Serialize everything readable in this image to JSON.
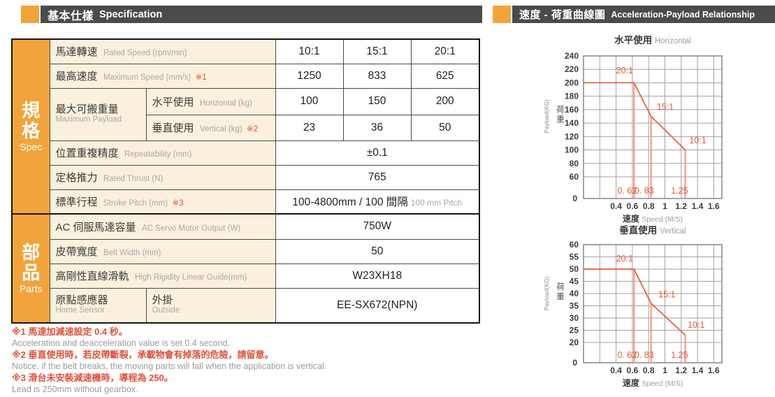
{
  "left": {
    "header": {
      "title_zh": "基本仕樣",
      "title_en": "Specification"
    },
    "side_labels": {
      "spec_zh": "規格",
      "spec_en": "Spec",
      "parts_zh": "部品",
      "parts_en": "Parts"
    },
    "table": {
      "rated_speed": {
        "zh": "馬達轉速",
        "en": "Rated Speed (rpm/min)",
        "values": [
          "10:1",
          "15:1",
          "20:1"
        ]
      },
      "max_speed": {
        "zh": "最高速度",
        "en": "Maximum Speed (mm/s)",
        "mark": "※1",
        "values": [
          "1250",
          "833",
          "625"
        ]
      },
      "max_payload": {
        "zh": "最大可搬重量",
        "en": "Maximum Payload",
        "horizontal": {
          "zh": "水平使用",
          "en": "Horizontal (kg)",
          "values": [
            "100",
            "150",
            "200"
          ]
        },
        "vertical": {
          "zh": "垂直使用",
          "en": "Vertical (kg)",
          "mark": "※2",
          "values": [
            "23",
            "36",
            "50"
          ]
        }
      },
      "repeatability": {
        "zh": "位置重複精度",
        "en": "Repeatability (mm)",
        "value": "±0.1"
      },
      "rated_thrust": {
        "zh": "定格推力",
        "en": "Rated Thrust (N)",
        "value": "765"
      },
      "stroke": {
        "zh": "標準行程",
        "en": "Stroke Pitch (mm)",
        "mark": "※3",
        "value": "100-4800mm / 100 間隔",
        "value_suffix": "100 mm Pitch"
      },
      "servo": {
        "zh": "AC 伺服馬達容量",
        "en": "AC Servo Motor Output (W)",
        "value": "750W"
      },
      "belt": {
        "zh": "皮帶寬度",
        "en": "Belt Width (mm)",
        "value": "50"
      },
      "guide": {
        "zh": "高剛性直線滑軌",
        "en": "High Rigidity Linear Guide(mm)",
        "value": "W23XH18"
      },
      "home_sensor": {
        "zh": "原點感應器",
        "en": "Home Sensor",
        "sub_zh": "外掛",
        "sub_en": "Outside",
        "value": "EE-SX672(NPN)"
      }
    },
    "footnotes": [
      {
        "zh": "※1 馬達加減速設定 0.4 秒。",
        "en": "Acceleration and deacceleration value is set 0.4 second."
      },
      {
        "zh": "※2 垂直使用時，若皮帶斷裂，承載物會有掉落的危險，請留意。",
        "en": "Notice, if the belt breaks, the moving parts will fall when the application is vertical."
      },
      {
        "zh": "※3 滑台未安裝減速機時，導程為 250。",
        "en": "Lead is 250mm without gearbox."
      }
    ]
  },
  "right": {
    "header": {
      "title_zh": "速度 - 荷重曲線圖",
      "title_en": "Acceleration-Payload Relationship"
    }
  },
  "chart_data": [
    {
      "type": "line",
      "title_zh": "水平使用",
      "title_en": "Horizontal",
      "xlabel_zh": "速度",
      "xlabel_en": "Speed (M/S)",
      "ylabel_zh": "荷重",
      "ylabel_en": "Payload(KG)",
      "x_tick_labels": [
        "0.4",
        "0.6",
        "0.8",
        "1",
        "1.2",
        "1.4",
        "1.6"
      ],
      "x_grid_step": 0.2,
      "x_max": 1.7,
      "y_ticks": [
        240,
        220,
        200,
        180,
        160,
        140,
        120,
        100,
        80,
        60
      ],
      "y_origin_label": "0",
      "line_color": "#E8583A",
      "drop_line_color": "#F2A28C",
      "grid_color": "#A2A2A2",
      "series": [
        {
          "name": "20:1",
          "points": [
            [
              0,
              200
            ],
            [
              0.62,
              200
            ]
          ],
          "drop_x": 0.62,
          "drop_label": "0. 62",
          "label_x": 0.4,
          "label_y": 214
        },
        {
          "name": "15:1",
          "points": [
            [
              0.62,
              200
            ],
            [
              0.83,
              150
            ]
          ],
          "drop_x": 0.83,
          "drop_label": "0. 83",
          "label_x": 0.9,
          "label_y": 160
        },
        {
          "name": "10:1",
          "points": [
            [
              0.83,
              150
            ],
            [
              1.25,
              100
            ]
          ],
          "drop_x": 1.25,
          "drop_label": "1.25",
          "label_x": 1.3,
          "label_y": 110
        }
      ]
    },
    {
      "type": "line",
      "title_zh": "垂直使用",
      "title_en": "Vertical",
      "xlabel_zh": "速度",
      "xlabel_en": "Speed (M/S)",
      "ylabel_zh": "荷重",
      "ylabel_en": "Payload(KG)",
      "x_tick_labels": [
        "0.4",
        "0.6",
        "0.8",
        "1",
        "1.2",
        "1.4",
        "1.6"
      ],
      "x_grid_step": 0.2,
      "x_max": 1.7,
      "y_ticks": [
        60,
        55,
        50,
        45,
        40,
        35,
        30,
        25,
        20
      ],
      "y_origin_label": "0",
      "line_color": "#E8583A",
      "drop_line_color": "#F2A28C",
      "grid_color": "#A2A2A2",
      "series": [
        {
          "name": "20:1",
          "points": [
            [
              0,
              50
            ],
            [
              0.62,
              50
            ]
          ],
          "drop_x": 0.62,
          "drop_label": "0. 62",
          "label_x": 0.4,
          "label_y": 53.2
        },
        {
          "name": "15:1",
          "points": [
            [
              0.62,
              50
            ],
            [
              0.83,
              36
            ]
          ],
          "drop_x": 0.83,
          "drop_label": "0. 83",
          "label_x": 0.92,
          "label_y": 38.4
        },
        {
          "name": "10:1",
          "points": [
            [
              0.83,
              36
            ],
            [
              1.25,
              23
            ]
          ],
          "drop_x": 1.25,
          "drop_label": "1.25",
          "label_x": 1.28,
          "label_y": 26
        }
      ]
    }
  ]
}
